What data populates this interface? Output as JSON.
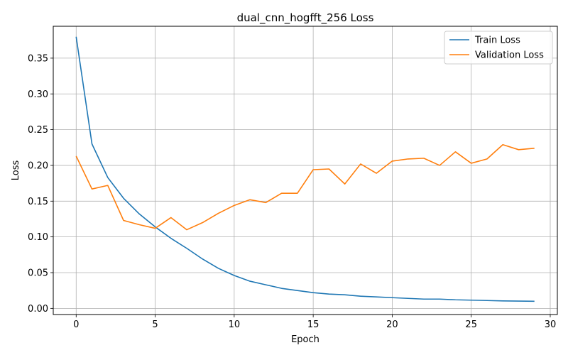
{
  "chart_data": {
    "type": "line",
    "title": "dual_cnn_hogfft_256 Loss",
    "xlabel": "Epoch",
    "ylabel": "Loss",
    "xlim": [
      -1.45,
      30.45
    ],
    "ylim": [
      -0.0086,
      0.3946
    ],
    "xticks": [
      0,
      5,
      10,
      15,
      20,
      25,
      30
    ],
    "yticks": [
      0.0,
      0.05,
      0.1,
      0.15,
      0.2,
      0.25,
      0.3,
      0.35
    ],
    "ytick_labels": [
      "0.00",
      "0.05",
      "0.10",
      "0.15",
      "0.20",
      "0.25",
      "0.30",
      "0.35"
    ],
    "grid": true,
    "legend_position": "top-right",
    "x": [
      0,
      1,
      2,
      3,
      4,
      5,
      6,
      7,
      8,
      9,
      10,
      11,
      12,
      13,
      14,
      15,
      16,
      17,
      18,
      19,
      20,
      21,
      22,
      23,
      24,
      25,
      26,
      27,
      28,
      29
    ],
    "series": [
      {
        "name": "Train Loss",
        "color": "#1f77b4",
        "values": [
          0.38,
          0.23,
          0.183,
          0.154,
          0.132,
          0.114,
          0.098,
          0.084,
          0.069,
          0.056,
          0.046,
          0.038,
          0.033,
          0.028,
          0.025,
          0.022,
          0.02,
          0.019,
          0.017,
          0.016,
          0.015,
          0.014,
          0.013,
          0.013,
          0.012,
          0.0115,
          0.011,
          0.0105,
          0.0102,
          0.01
        ]
      },
      {
        "name": "Validation Loss",
        "color": "#ff7f0e",
        "values": [
          0.213,
          0.167,
          0.172,
          0.123,
          0.117,
          0.112,
          0.127,
          0.11,
          0.12,
          0.133,
          0.144,
          0.152,
          0.148,
          0.161,
          0.161,
          0.194,
          0.195,
          0.174,
          0.202,
          0.189,
          0.206,
          0.209,
          0.21,
          0.2,
          0.219,
          0.203,
          0.209,
          0.229,
          0.222,
          0.224
        ]
      }
    ]
  }
}
